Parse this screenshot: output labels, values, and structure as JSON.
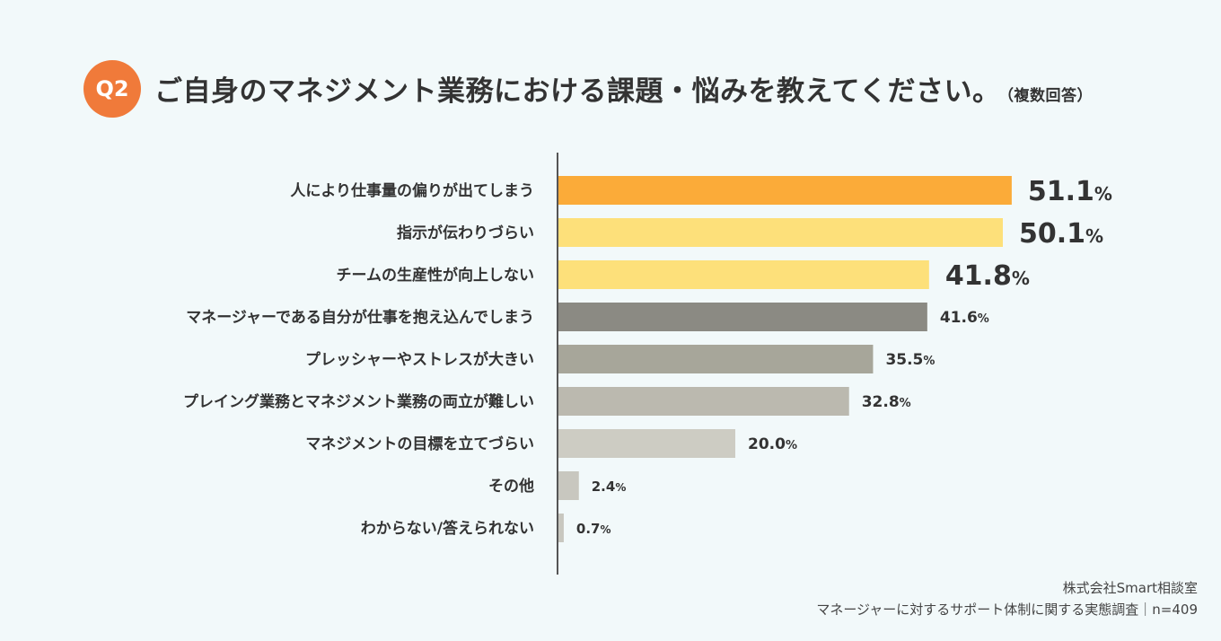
{
  "header": {
    "badge": "Q2",
    "title": "ご自身のマネジメント業務における課題・悩みを教えてください。",
    "note": "（複数回答）"
  },
  "chart_data": {
    "type": "bar",
    "orientation": "horizontal",
    "title": "ご自身のマネジメント業務における課題・悩みを教えてください。（複数回答）",
    "categories": [
      "人により仕事量の偏りが出てしまう",
      "指示が伝わりづらい",
      "チームの生産性が向上しない",
      "マネージャーである自分が仕事を抱え込んでしまう",
      "プレッシャーやストレスが大きい",
      "プレイング業務とマネジメント業務の両立が難しい",
      "マネジメントの目標を立てづらい",
      "その他",
      "わからない/答えられない"
    ],
    "values": [
      51.1,
      50.1,
      41.8,
      41.6,
      35.5,
      32.8,
      20.0,
      2.4,
      0.7
    ],
    "value_labels": [
      "51.1",
      "50.1",
      "41.8",
      "41.6",
      "35.5",
      "32.8",
      "20.0",
      "2.4",
      "0.7"
    ],
    "unit": "%",
    "xlim": [
      0,
      60
    ],
    "colors": [
      "#fbab39",
      "#fde07a",
      "#fde07a",
      "#8b8a83",
      "#a7a69a",
      "#bbb9af",
      "#cdccc3",
      "#c8c7bf",
      "#c8c7bf"
    ],
    "xlabel": "",
    "ylabel": ""
  },
  "footer": {
    "company": "株式会社Smart相談室",
    "survey": "マネージャーに対するサポート体制に関する実態調査｜n=409"
  }
}
